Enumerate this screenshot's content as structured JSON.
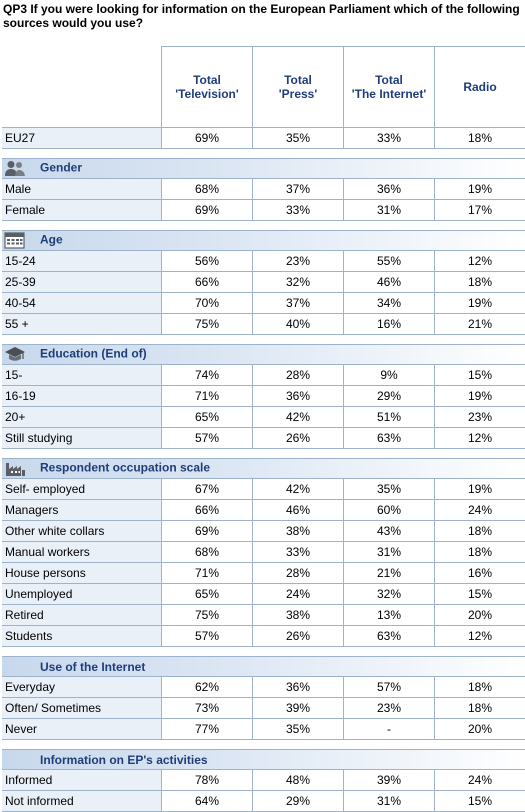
{
  "title": "QP3  If you were looking for information on the European Parliament which of the following sources would you use?",
  "columns": [
    "Total 'Television'",
    "Total 'Press'",
    "Total 'The Internet'",
    "Radio"
  ],
  "columns_lines": [
    [
      "Total",
      "'Television'"
    ],
    [
      "Total",
      "'Press'"
    ],
    [
      "Total",
      "'The Internet'"
    ],
    [
      "Radio"
    ]
  ],
  "top": {
    "label": "EU27",
    "values": [
      "69%",
      "35%",
      "33%",
      "18%"
    ]
  },
  "sections": [
    {
      "name": "Gender",
      "icon": "people-icon",
      "rows": [
        {
          "label": "Male",
          "values": [
            "68%",
            "37%",
            "36%",
            "19%"
          ]
        },
        {
          "label": "Female",
          "values": [
            "69%",
            "33%",
            "31%",
            "17%"
          ]
        }
      ]
    },
    {
      "name": "Age",
      "icon": "calendar-icon",
      "rows": [
        {
          "label": "15-24",
          "values": [
            "56%",
            "23%",
            "55%",
            "12%"
          ]
        },
        {
          "label": "25-39",
          "values": [
            "66%",
            "32%",
            "46%",
            "18%"
          ]
        },
        {
          "label": "40-54",
          "values": [
            "70%",
            "37%",
            "34%",
            "19%"
          ]
        },
        {
          "label": "55 +",
          "values": [
            "75%",
            "40%",
            "16%",
            "21%"
          ]
        }
      ]
    },
    {
      "name": "Education (End of)",
      "icon": "graduation-cap-icon",
      "rows": [
        {
          "label": "15-",
          "values": [
            "74%",
            "28%",
            "9%",
            "15%"
          ]
        },
        {
          "label": "16-19",
          "values": [
            "71%",
            "36%",
            "29%",
            "19%"
          ]
        },
        {
          "label": "20+",
          "values": [
            "65%",
            "42%",
            "51%",
            "23%"
          ]
        },
        {
          "label": "Still studying",
          "values": [
            "57%",
            "26%",
            "63%",
            "12%"
          ]
        }
      ]
    },
    {
      "name": "Respondent occupation scale",
      "icon": "factory-icon",
      "rows": [
        {
          "label": "Self- employed",
          "values": [
            "67%",
            "42%",
            "35%",
            "19%"
          ]
        },
        {
          "label": "Managers",
          "values": [
            "66%",
            "46%",
            "60%",
            "24%"
          ]
        },
        {
          "label": "Other white collars",
          "values": [
            "69%",
            "38%",
            "43%",
            "18%"
          ]
        },
        {
          "label": "Manual workers",
          "values": [
            "68%",
            "33%",
            "31%",
            "18%"
          ]
        },
        {
          "label": "House persons",
          "values": [
            "71%",
            "28%",
            "21%",
            "16%"
          ]
        },
        {
          "label": "Unemployed",
          "values": [
            "65%",
            "24%",
            "32%",
            "15%"
          ]
        },
        {
          "label": "Retired",
          "values": [
            "75%",
            "38%",
            "13%",
            "20%"
          ]
        },
        {
          "label": "Students",
          "values": [
            "57%",
            "26%",
            "63%",
            "12%"
          ]
        }
      ]
    },
    {
      "name": "Use of the Internet",
      "icon": "",
      "rows": [
        {
          "label": "Everyday",
          "values": [
            "62%",
            "36%",
            "57%",
            "18%"
          ]
        },
        {
          "label": "Often/ Sometimes",
          "values": [
            "73%",
            "39%",
            "23%",
            "18%"
          ]
        },
        {
          "label": "Never",
          "values": [
            "77%",
            "35%",
            "-",
            "20%"
          ]
        }
      ]
    },
    {
      "name": "Information on EP's activities",
      "icon": "",
      "rows": [
        {
          "label": "Informed",
          "values": [
            "78%",
            "48%",
            "39%",
            "24%"
          ]
        },
        {
          "label": "Not informed",
          "values": [
            "64%",
            "29%",
            "31%",
            "15%"
          ]
        }
      ]
    }
  ]
}
